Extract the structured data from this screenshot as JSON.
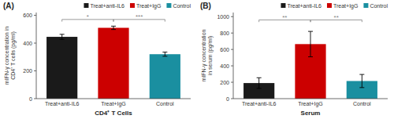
{
  "chart_data": [
    {
      "type": "bar",
      "title": "(A)",
      "categories": [
        "Treat+anti-IL6",
        "Treat+IgG",
        "Control"
      ],
      "values": [
        445,
        510,
        320
      ],
      "errors": [
        18,
        12,
        15
      ],
      "colors": [
        "#1a1a1a",
        "#cc0000",
        "#1a8fa0"
      ],
      "ylabel": "mIFN-γ concentration in\nCD4⁺ T cells (pg/ml)",
      "xlabel": "CD4⁺ T Cells",
      "ylim": [
        0,
        620
      ],
      "yticks": [
        0,
        200,
        400,
        600
      ],
      "grid": false,
      "legend": "upper right",
      "annotations": [
        {
          "from": "Treat+anti-IL6",
          "to": "Treat+IgG",
          "y": 570,
          "text": "*",
          "text_y": 575
        },
        {
          "from": "Treat+IgG",
          "to": "Control",
          "y": 570,
          "text": "***",
          "text_y": 575
        }
      ]
    },
    {
      "type": "bar",
      "title": "(B)",
      "categories": [
        "Treat+anti-IL6",
        "Treat+IgG",
        "Control"
      ],
      "values": [
        190,
        665,
        215
      ],
      "errors": [
        65,
        155,
        80
      ],
      "colors": [
        "#1a1a1a",
        "#cc0000",
        "#1a8fa0"
      ],
      "ylabel": "mIFN-γ concentration\nin serum (pg/ml)",
      "xlabel": "Serum",
      "ylim": [
        0,
        1050
      ],
      "yticks": [
        0,
        200,
        400,
        600,
        800,
        1000
      ],
      "grid": false,
      "legend": "upper right",
      "annotations": [
        {
          "from": "Treat+anti-IL6",
          "to": "Treat+IgG",
          "y": 960,
          "text": "**",
          "text_y": 968
        },
        {
          "from": "Treat+IgG",
          "to": "Control",
          "y": 960,
          "text": "**",
          "text_y": 968
        }
      ]
    }
  ]
}
